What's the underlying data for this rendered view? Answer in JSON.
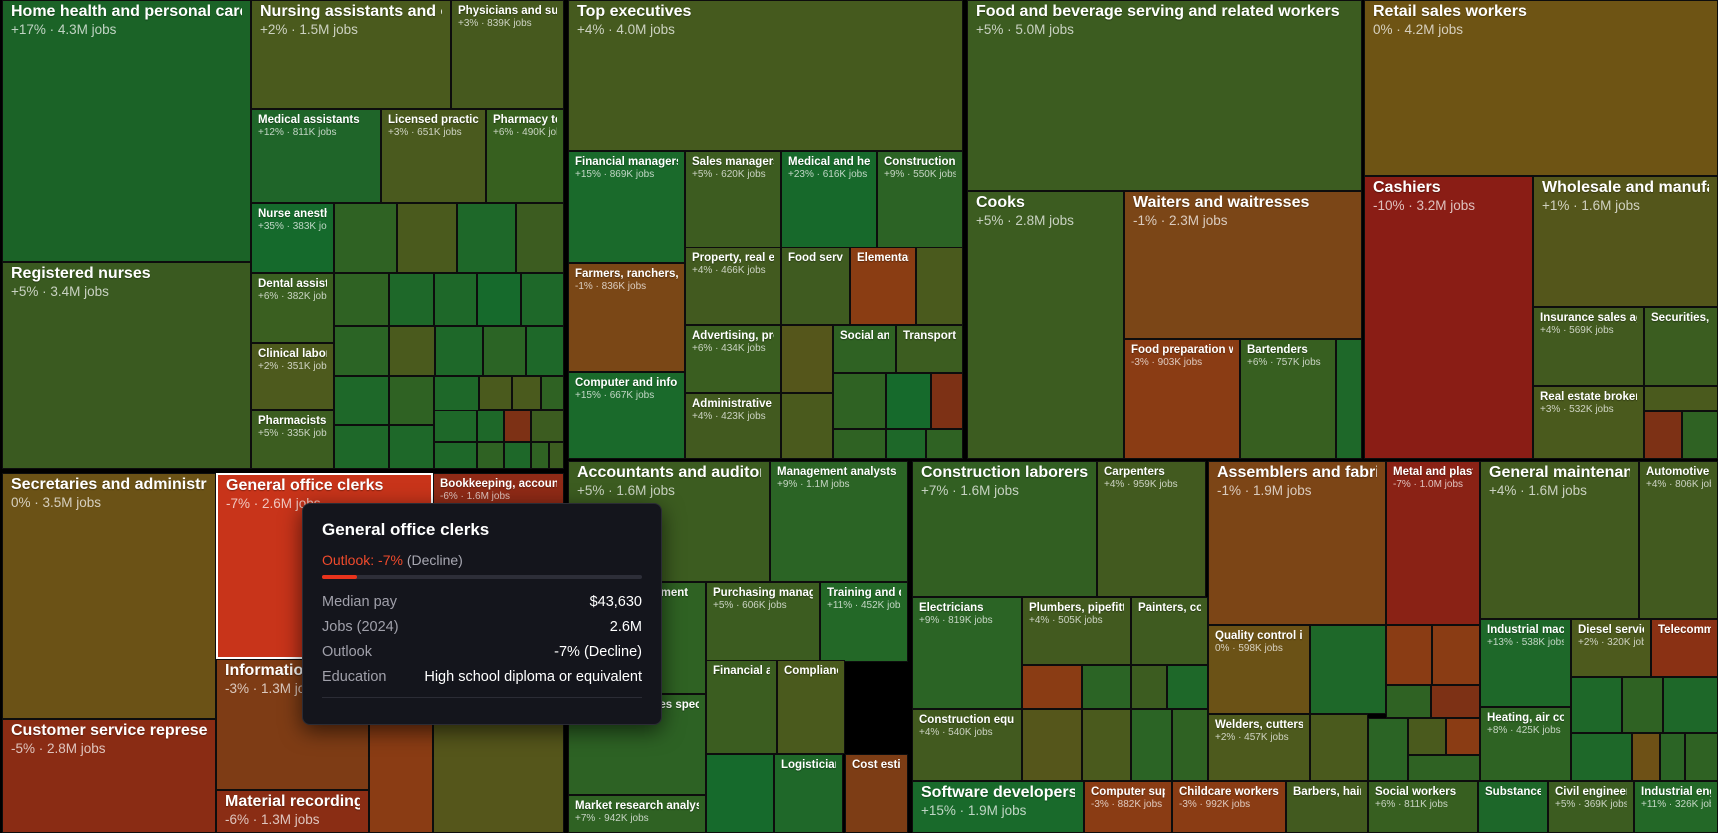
{
  "treemap": {
    "occupations": [
      {
        "title": "Home health and personal care",
        "stats": "+17% · 4.3M jobs",
        "color": "#1b6327"
      },
      {
        "title": "Registered nurses",
        "stats": "+5% · 3.4M jobs",
        "color": "#3a5a20"
      },
      {
        "title": "Nursing assistants and orderlies",
        "stats": "+2% · 1.5M jobs",
        "color": "#4a5a1d"
      },
      {
        "title": "Physicians and surgeons",
        "stats": "+3% · 839K jobs",
        "color": "#46591e"
      },
      {
        "title": "Medical assistants",
        "stats": "+12% · 811K jobs",
        "color": "#1f6529"
      },
      {
        "title": "Licensed practical",
        "stats": "+3% · 651K jobs",
        "color": "#4a5a1e"
      },
      {
        "title": "Pharmacy technicians",
        "stats": "+6% · 490K jobs",
        "color": "#37601f"
      },
      {
        "title": "Nurse anesthetists",
        "stats": "+35% · 383K jobs",
        "color": "#156a2c"
      },
      {
        "title": "Dental assistants",
        "stats": "+6% · 382K jobs",
        "color": "#3a5f20"
      },
      {
        "title": "Clinical laboratory",
        "stats": "+2% · 351K jobs",
        "color": "#4d5a1d"
      },
      {
        "title": "Pharmacists",
        "stats": "+5% · 335K jobs",
        "color": "#3c5d20"
      },
      {
        "title": "Top executives",
        "stats": "+4% · 4.0M jobs",
        "color": "#455a1e"
      },
      {
        "title": "Financial managers",
        "stats": "+15% · 869K jobs",
        "color": "#1a6a2b"
      },
      {
        "title": "Sales managers",
        "stats": "+5% · 620K jobs",
        "color": "#3d5c20"
      },
      {
        "title": "Medical and health services",
        "stats": "+23% · 616K jobs",
        "color": "#17692b"
      },
      {
        "title": "Construction managers",
        "stats": "+9% · 550K jobs",
        "color": "#2c6325"
      },
      {
        "title": "Farmers, ranchers, and",
        "stats": "-1% · 836K jobs",
        "color": "#7a4716"
      },
      {
        "title": "Property, real estate",
        "stats": "+4% · 466K jobs",
        "color": "#425a1f"
      },
      {
        "title": "Food service",
        "stats": "",
        "color": "#3f5b20"
      },
      {
        "title": "Elementary",
        "stats": "",
        "color": "#8a3d13"
      },
      {
        "title": "Advertising, promotions",
        "stats": "+6% · 434K jobs",
        "color": "#3a5e20"
      },
      {
        "title": "Social and",
        "stats": "",
        "color": "#2f6223"
      },
      {
        "title": "Transportation",
        "stats": "",
        "color": "#3c5d20"
      },
      {
        "title": "Computer and information",
        "stats": "+15% · 667K jobs",
        "color": "#1a6a2b"
      },
      {
        "title": "Administrative services",
        "stats": "+4% · 423K jobs",
        "color": "#425a1f"
      },
      {
        "title": "Food and beverage serving and related workers",
        "stats": "+5% · 5.0M jobs",
        "color": "#3c5c20"
      },
      {
        "title": "Cooks",
        "stats": "+5% · 2.8M jobs",
        "color": "#3c5c20"
      },
      {
        "title": "Waiters and waitresses",
        "stats": "-1% · 2.3M jobs",
        "color": "#7b4617"
      },
      {
        "title": "Food preparation workers",
        "stats": "-3% · 903K jobs",
        "color": "#8a3c14"
      },
      {
        "title": "Bartenders",
        "stats": "+6% · 757K jobs",
        "color": "#375f20"
      },
      {
        "title": "Retail sales workers",
        "stats": "0% · 4.2M jobs",
        "color": "#6e5414"
      },
      {
        "title": "Cashiers",
        "stats": "-10% · 3.2M jobs",
        "color": "#8a1d15"
      },
      {
        "title": "Wholesale and manufacturing",
        "stats": "+1% · 1.6M jobs",
        "color": "#54561b"
      },
      {
        "title": "Insurance sales agents",
        "stats": "+4% · 569K jobs",
        "color": "#425a1f"
      },
      {
        "title": "Securities, commodities",
        "stats": "",
        "color": "#3b5d20"
      },
      {
        "title": "Real estate brokers",
        "stats": "+3% · 532K jobs",
        "color": "#4a5a1d"
      },
      {
        "title": "Secretaries and administrative assistants",
        "stats": "0% · 3.5M jobs",
        "color": "#6b5216"
      },
      {
        "title": "General office clerks",
        "stats": "-7% · 2.6M jobs",
        "color": "#c8341a"
      },
      {
        "title": "Bookkeeping, accounting",
        "stats": "-6% · 1.6M jobs",
        "color": "#8f2a16"
      },
      {
        "title": "Information clerks",
        "stats": "-3% · 1.3M jobs",
        "color": "#7e3c15"
      },
      {
        "title": "Customer service representatives",
        "stats": "-5% · 2.8M jobs",
        "color": "#8a2c14"
      },
      {
        "title": "Material recording clerks",
        "stats": "-6% · 1.3M jobs",
        "color": "#8a2d14"
      },
      {
        "title": "Accountants and auditors",
        "stats": "+5% · 1.6M jobs",
        "color": "#3c5c20"
      },
      {
        "title": "Management analysts",
        "stats": "+9% · 1.1M jobs",
        "color": "#2b6425"
      },
      {
        "title": "Project management",
        "stats": "",
        "color": "#2f6223"
      },
      {
        "title": "Purchasing managers",
        "stats": "+5% · 606K jobs",
        "color": "#3c5c20"
      },
      {
        "title": "Training and development",
        "stats": "+11% · 452K jobs",
        "color": "#236827"
      },
      {
        "title": "Financial analysts",
        "stats": "",
        "color": "#3b5d20"
      },
      {
        "title": "Compliance",
        "stats": "",
        "color": "#4a5a1d"
      },
      {
        "title": "Human resources specialists",
        "stats": "",
        "color": "#2d6224"
      },
      {
        "title": "Logisticians",
        "stats": "",
        "color": "#1f6829"
      },
      {
        "title": "Cost estimators",
        "stats": "",
        "color": "#7d3d15"
      },
      {
        "title": "Market research analysts",
        "stats": "+7% · 942K jobs",
        "color": "#2f6223"
      },
      {
        "title": "Construction laborers and",
        "stats": "+7% · 1.6M jobs",
        "color": "#325f22"
      },
      {
        "title": "Carpenters",
        "stats": "+4% · 959K jobs",
        "color": "#425a1f"
      },
      {
        "title": "Electricians",
        "stats": "+9% · 819K jobs",
        "color": "#2b6425"
      },
      {
        "title": "Plumbers, pipefitters",
        "stats": "+4% · 505K jobs",
        "color": "#425a1f"
      },
      {
        "title": "Painters, construction",
        "stats": "",
        "color": "#3f5b20"
      },
      {
        "title": "Construction equipment",
        "stats": "+4% · 540K jobs",
        "color": "#425a1f"
      },
      {
        "title": "Software developers, QA",
        "stats": "+15% · 1.9M jobs",
        "color": "#196a2b"
      },
      {
        "title": "Computer support",
        "stats": "-3% · 882K jobs",
        "color": "#8a3c14"
      },
      {
        "title": "Assemblers and fabricators",
        "stats": "-1% · 1.9M jobs",
        "color": "#7c4516"
      },
      {
        "title": "Metal and plastic",
        "stats": "-7% · 1.0M jobs",
        "color": "#8a2215"
      },
      {
        "title": "Quality control inspectors",
        "stats": "0% · 598K jobs",
        "color": "#6b5216"
      },
      {
        "title": "Welders, cutters,",
        "stats": "+2% · 457K jobs",
        "color": "#4d5a1d"
      },
      {
        "title": "Childcare workers",
        "stats": "-3% · 992K jobs",
        "color": "#8a3c14"
      },
      {
        "title": "Barbers, hairstylists",
        "stats": "",
        "color": "#425a1f"
      },
      {
        "title": "General maintenance and",
        "stats": "+4% · 1.6M jobs",
        "color": "#425a1f"
      },
      {
        "title": "Automotive service",
        "stats": "+4% · 806K jobs",
        "color": "#425a1f"
      },
      {
        "title": "Industrial machinery",
        "stats": "+13% · 538K jobs",
        "color": "#1e6829"
      },
      {
        "title": "Diesel service",
        "stats": "+2% · 320K jobs",
        "color": "#4d5a1d"
      },
      {
        "title": "Telecommunications",
        "stats": "",
        "color": "#8a3114"
      },
      {
        "title": "Heating, air conditioning",
        "stats": "+8% · 425K jobs",
        "color": "#2e6323"
      },
      {
        "title": "Social workers",
        "stats": "+6% · 811K jobs",
        "color": "#375f20"
      },
      {
        "title": "Substance",
        "stats": "",
        "color": "#1d6729"
      },
      {
        "title": "Civil engineers",
        "stats": "+5% · 369K jobs",
        "color": "#3c5c20"
      },
      {
        "title": "Industrial engineers",
        "stats": "+11% · 326K jobs",
        "color": "#236827"
      }
    ],
    "filler_colors": [
      "#2f6223",
      "#1e6829",
      "#3c5c20",
      "#4a5a1d",
      "#166a2c",
      "#2b6425",
      "#55561b",
      "#6e5116",
      "#8a3c14",
      "#3f5b20",
      "#7d3115"
    ]
  },
  "tooltip": {
    "title": "General office clerks",
    "outlook_prefix": "Outlook:",
    "outlook_value": "-7%",
    "outlook_class": "(Decline)",
    "outlook_share": 0.11,
    "rows": [
      {
        "label": "Median pay",
        "value": "$43,630"
      },
      {
        "label": "Jobs (2024)",
        "value": "2.6M"
      },
      {
        "label": "Outlook",
        "value": "-7% (Decline)"
      },
      {
        "label": "Education",
        "value": "High school diploma or equivalent"
      }
    ]
  }
}
